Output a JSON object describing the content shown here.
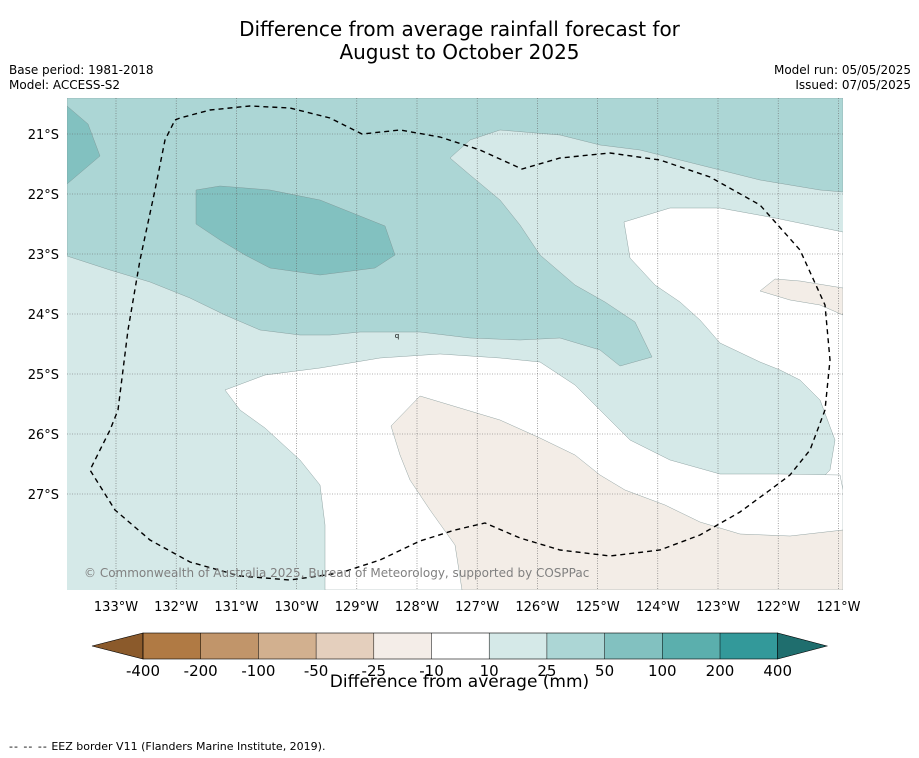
{
  "title": {
    "line1": "Difference from average rainfall forecast for",
    "line2": "August to October 2025"
  },
  "meta_left": {
    "base_period": "Base period: 1981-2018",
    "model": "Model: ACCESS-S2"
  },
  "meta_right": {
    "model_run": "Model run: 05/05/2025",
    "issued": "Issued: 07/05/2025"
  },
  "map": {
    "lat_labels": [
      "21°S",
      "22°S",
      "23°S",
      "24°S",
      "25°S",
      "26°S",
      "27°S"
    ],
    "lon_labels": [
      "133°W",
      "132°W",
      "131°W",
      "130°W",
      "129°W",
      "128°W",
      "127°W",
      "126°W",
      "125°W",
      "124°W",
      "123°W",
      "122°W",
      "121°W"
    ],
    "copyright": "© Commonwealth of Australia 2025, Bureau of Meteorology, supported by COSPPac",
    "colors": {
      "c10_25": "#d5e9e8",
      "c25_50": "#acd6d5",
      "c50_100": "#82c1c0",
      "cm25_m10": "#f3ede7"
    }
  },
  "colorbar": {
    "ticks": [
      "-400",
      "-200",
      "-100",
      "-50",
      "-25",
      "-10",
      "10",
      "25",
      "50",
      "100",
      "200",
      "400"
    ],
    "colors": [
      "#8b5a2b",
      "#b07a44",
      "#c1956a",
      "#d2b08f",
      "#e4cfbd",
      "#f4ede8",
      "#ffffff",
      "#d5e9e8",
      "#acd6d5",
      "#82c1c0",
      "#5bafad",
      "#33999a",
      "#1f6e6e"
    ],
    "label": "Difference from average (mm)"
  },
  "footnote": {
    "dashes": "-- -- --",
    "text": "EEZ border V11 (Flanders Marine Institute, 2019)."
  }
}
